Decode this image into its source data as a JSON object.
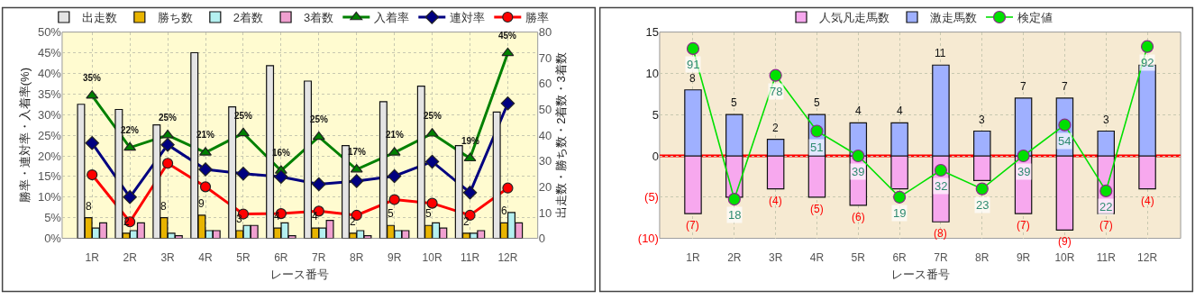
{
  "chart_data": [
    {
      "type": "bar",
      "categories": [
        "1R",
        "2R",
        "3R",
        "4R",
        "5R",
        "6R",
        "7R",
        "8R",
        "9R",
        "10R",
        "11R",
        "12R"
      ],
      "xlabel": "レース番号",
      "ylabel": "勝率・連対率・入着率(%)",
      "y2label": "出走数・勝ち数・2着数・3着数",
      "ylim": [
        0,
        50
      ],
      "yticks": [
        {
          "value": 0,
          "label": "0%"
        },
        {
          "value": 5,
          "label": "5%"
        },
        {
          "value": 10,
          "label": "10%"
        },
        {
          "value": 15,
          "label": "15%"
        },
        {
          "value": 20,
          "label": "20%"
        },
        {
          "value": 25,
          "label": "25%"
        },
        {
          "value": 30,
          "label": "30%"
        },
        {
          "value": 35,
          "label": "35%"
        },
        {
          "value": 40,
          "label": "40%"
        },
        {
          "value": 45,
          "label": "45%"
        },
        {
          "value": 50,
          "label": "50%"
        }
      ],
      "y2lim": [
        0,
        80
      ],
      "y2ticks": [
        0,
        10,
        20,
        30,
        40,
        50,
        60,
        70,
        80
      ],
      "grid": true,
      "legend": "top",
      "series": [
        {
          "name": "出走数",
          "color": "#e4e4e4",
          "axis": "y2",
          "values": [
            52,
            50,
            44,
            72,
            51,
            67,
            61,
            36,
            53,
            59,
            36,
            49
          ]
        },
        {
          "name": "勝ち数",
          "color": "#e8b400",
          "axis": "y2",
          "values": [
            8,
            2,
            8,
            9,
            3,
            4,
            4,
            2,
            5,
            5,
            2,
            6
          ],
          "value_labels": [
            "8",
            "2",
            "8",
            "9",
            "3",
            "4",
            "4",
            "2",
            "5",
            "5",
            "2",
            "6"
          ]
        },
        {
          "name": "2着数",
          "color": "#b4f0f0",
          "axis": "y2",
          "values": [
            4,
            3,
            2,
            3,
            5,
            6,
            4,
            3,
            3,
            6,
            2,
            10
          ]
        },
        {
          "name": "3着数",
          "color": "#f0a0d0",
          "axis": "y2",
          "values": [
            6,
            6,
            1,
            3,
            5,
            1,
            7,
            1,
            3,
            4,
            3,
            6
          ]
        },
        {
          "name": "入着率",
          "type": "line",
          "color": "#008000",
          "marker": "triangle",
          "values": [
            34.6,
            22.0,
            25.0,
            20.8,
            25.5,
            16.4,
            24.6,
            16.7,
            20.8,
            25.4,
            19.4,
            44.9
          ],
          "value_labels": [
            "35%",
            "22%",
            "25%",
            "21%",
            "25%",
            "16%",
            "25%",
            "17%",
            "21%",
            "25%",
            "19%",
            "45%"
          ]
        },
        {
          "name": "連対率",
          "type": "line",
          "color": "#000080",
          "marker": "diamond",
          "values": [
            23.1,
            10.0,
            22.7,
            16.7,
            15.7,
            14.9,
            13.1,
            13.9,
            15.1,
            18.6,
            11.1,
            32.7
          ]
        },
        {
          "name": "勝率",
          "type": "line",
          "color": "#ff0000",
          "marker": "circle",
          "values": [
            15.4,
            4.0,
            18.2,
            12.5,
            5.9,
            6.0,
            6.6,
            5.6,
            9.4,
            8.5,
            5.6,
            12.2
          ]
        }
      ]
    },
    {
      "type": "bar",
      "stacked": true,
      "categories": [
        "1R",
        "2R",
        "3R",
        "4R",
        "5R",
        "6R",
        "7R",
        "8R",
        "9R",
        "10R",
        "11R",
        "12R"
      ],
      "xlabel": "レース番号",
      "ylim": [
        -10,
        15
      ],
      "yticks": [
        15,
        10,
        5,
        0,
        {
          "value": -5,
          "label": "(5)"
        },
        {
          "value": -10,
          "label": "(10)"
        }
      ],
      "y2lim": [
        -1,
        99
      ],
      "grid": true,
      "legend": "top",
      "ref_lines": [
        {
          "axis": "y",
          "value": 0,
          "color": "#ff0000"
        }
      ],
      "series": [
        {
          "name": "人気凡走馬数",
          "color": "#f7a8ee",
          "values": [
            -7,
            -5,
            -4,
            -5,
            -6,
            -4,
            -8,
            -3,
            -7,
            -9,
            -7,
            -4
          ],
          "value_labels": [
            "(7)",
            null,
            "(4)",
            "(5)",
            "(6)",
            null,
            "(8)",
            null,
            "(7)",
            "(9)",
            "(7)",
            "(4)"
          ]
        },
        {
          "name": "激走馬数",
          "color": "#9fb0ff",
          "values": [
            8,
            5,
            2,
            5,
            4,
            4,
            11,
            3,
            7,
            7,
            3,
            11
          ],
          "value_labels": [
            "8",
            "5",
            "2",
            "5",
            "4",
            "4",
            "11",
            "3",
            "7",
            "7",
            "3",
            null
          ]
        },
        {
          "name": "検定値",
          "type": "line",
          "color": "#00e000",
          "marker": "circle",
          "axis": "y2",
          "values": [
            91,
            18,
            78,
            51,
            39,
            19,
            32,
            23,
            39,
            54,
            22,
            92
          ],
          "value_labels": [
            "91",
            "18",
            "78",
            "51",
            "39",
            "19",
            "32",
            "23",
            "39",
            "54",
            "22",
            "92"
          ]
        }
      ]
    }
  ]
}
